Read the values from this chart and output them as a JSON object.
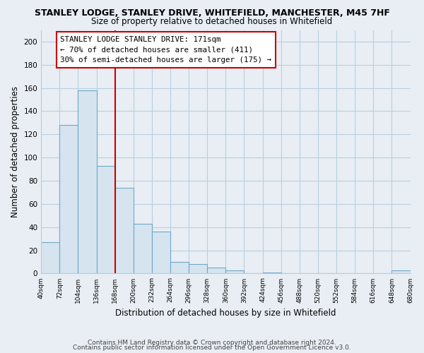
{
  "title": "STANLEY LODGE, STANLEY DRIVE, WHITEFIELD, MANCHESTER, M45 7HF",
  "subtitle": "Size of property relative to detached houses in Whitefield",
  "xlabel": "Distribution of detached houses by size in Whitefield",
  "ylabel": "Number of detached properties",
  "bar_edges": [
    40,
    72,
    104,
    136,
    168,
    200,
    232,
    264,
    296,
    328,
    360,
    392,
    424,
    456,
    488,
    520,
    552,
    584,
    616,
    648,
    680
  ],
  "bar_heights": [
    27,
    128,
    158,
    93,
    74,
    43,
    36,
    10,
    8,
    5,
    3,
    0,
    1,
    0,
    0,
    0,
    0,
    0,
    0,
    3
  ],
  "bar_color": "#d6e4f0",
  "bar_edgecolor": "#6fa8c8",
  "grid_color": "#b8cfe0",
  "vline_x": 168,
  "vline_color": "#cc0000",
  "annotation_text": "STANLEY LODGE STANLEY DRIVE: 171sqm\n← 70% of detached houses are smaller (411)\n30% of semi-detached houses are larger (175) →",
  "annotation_box_edgecolor": "#cc0000",
  "annotation_box_fc": "#ffffff",
  "ylim": [
    0,
    210
  ],
  "yticks": [
    0,
    20,
    40,
    60,
    80,
    100,
    120,
    140,
    160,
    180,
    200
  ],
  "tick_labels": [
    "40sqm",
    "72sqm",
    "104sqm",
    "136sqm",
    "168sqm",
    "200sqm",
    "232sqm",
    "264sqm",
    "296sqm",
    "328sqm",
    "360sqm",
    "392sqm",
    "424sqm",
    "456sqm",
    "488sqm",
    "520sqm",
    "552sqm",
    "584sqm",
    "616sqm",
    "648sqm",
    "680sqm"
  ],
  "footer1": "Contains HM Land Registry data © Crown copyright and database right 2024.",
  "footer2": "Contains public sector information licensed under the Open Government Licence v3.0.",
  "bg_color": "#e8eef4",
  "plot_bg_color": "#e8eef4"
}
